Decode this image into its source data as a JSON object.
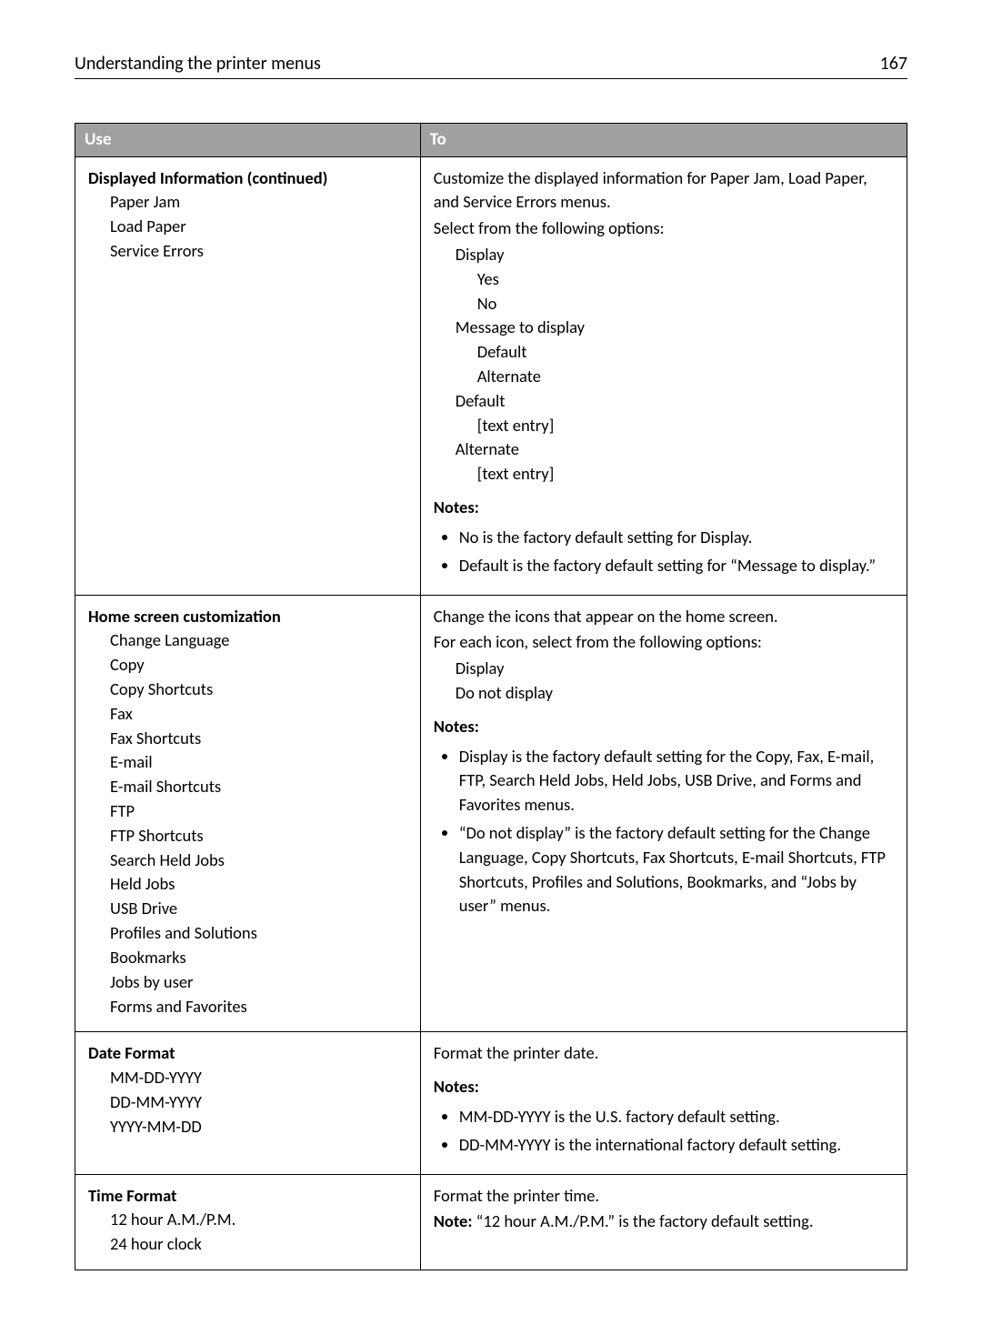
{
  "header": {
    "title": "Understanding the printer menus",
    "page_number": "167"
  },
  "table": {
    "headers": {
      "use": "Use",
      "to": "To"
    },
    "rows": [
      {
        "use": {
          "title": "Displayed Information (continued)",
          "items": [
            "Paper Jam",
            "Load Paper",
            "Service Errors"
          ]
        },
        "to": {
          "intro1": "Customize the displayed information for Paper Jam, Load Paper, and Service Errors menus.",
          "intro2": "Select from the following options:",
          "opt_display": "Display",
          "opt_yes": "Yes",
          "opt_no": "No",
          "opt_msg": "Message to display",
          "opt_default_sub": "Default",
          "opt_alternate_sub": "Alternate",
          "opt_default": "Default",
          "opt_text1": "[text entry]",
          "opt_alternate": "Alternate",
          "opt_text2": "[text entry]",
          "notes_heading": "Notes:",
          "notes": [
            "No is the factory default setting for Display.",
            "Default is the factory default setting for “Message to display.”"
          ]
        }
      },
      {
        "use": {
          "title": "Home screen customization",
          "items": [
            "Change Language",
            "Copy",
            "Copy Shortcuts",
            "Fax",
            "Fax Shortcuts",
            "E-mail",
            "E-mail Shortcuts",
            "FTP",
            "FTP Shortcuts",
            "Search Held Jobs",
            "Held Jobs",
            "USB Drive",
            "Profiles and Solutions",
            "Bookmarks",
            "Jobs by user",
            "Forms and Favorites"
          ]
        },
        "to": {
          "intro1": "Change the icons that appear on the home screen.",
          "intro2": "For each icon, select from the following options:",
          "opt_display": "Display",
          "opt_dontdisplay": "Do not display",
          "notes_heading": "Notes:",
          "notes": [
            "Display is the factory default setting for the Copy, Fax, E-mail, FTP, Search Held Jobs, Held Jobs, USB Drive, and Forms and Favorites menus.",
            "“Do not display” is the factory default setting for the Change Language, Copy Shortcuts, Fax Shortcuts, E-mail Shortcuts, FTP Shortcuts, Profiles and Solutions, Bookmarks, and “Jobs by user” menus."
          ]
        }
      },
      {
        "use": {
          "title": "Date Format",
          "items": [
            "MM-DD-YYYY",
            "DD-MM-YYYY",
            "YYYY-MM-DD"
          ]
        },
        "to": {
          "intro1": "Format the printer date.",
          "notes_heading": "Notes:",
          "notes": [
            "MM-DD-YYYY is the U.S. factory default setting.",
            "DD-MM-YYYY is the international factory default setting."
          ]
        }
      },
      {
        "use": {
          "title": "Time Format",
          "items": [
            "12 hour A.M./P.M.",
            "24 hour clock"
          ]
        },
        "to": {
          "intro1": "Format the printer time.",
          "note_label": "Note:",
          "note_text": " “12 hour A.M./P.M.” is the factory default setting."
        }
      }
    ]
  }
}
